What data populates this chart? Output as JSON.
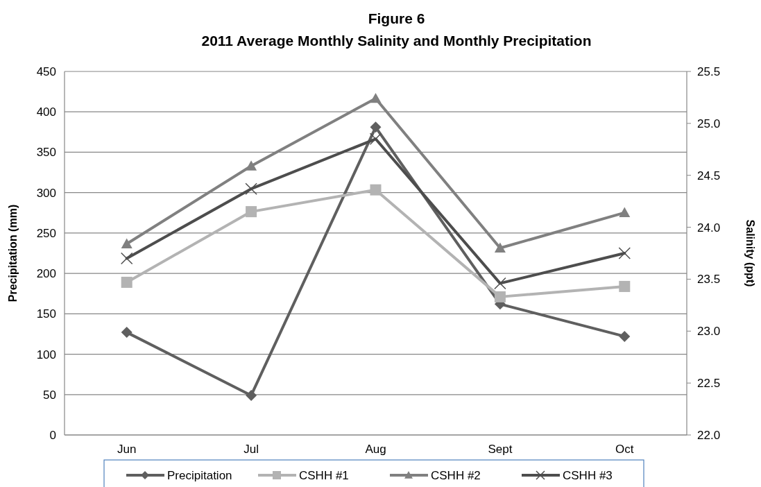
{
  "chart_data": {
    "type": "line",
    "title": "Figure 6",
    "subtitle": "2011 Average Monthly Salinity and Monthly Precipitation",
    "ylabel": "Precipitation (mm)",
    "y2label": "Salinity (ppt)",
    "categories": [
      "Jun",
      "Jul",
      "Aug",
      "Sept",
      "Oct"
    ],
    "ylim": [
      0,
      450
    ],
    "yticks": [
      0,
      50,
      100,
      150,
      200,
      250,
      300,
      350,
      400,
      450
    ],
    "y2lim": [
      22.0,
      25.5
    ],
    "y2ticks": [
      {
        "value": 22,
        "label": "22.0"
      },
      {
        "value": 22.5,
        "label": "22.5"
      },
      {
        "value": 23,
        "label": "23.0"
      },
      {
        "value": 23.5,
        "label": "23.5"
      },
      {
        "value": 24,
        "label": "24.0"
      },
      {
        "value": 24.5,
        "label": "24.5"
      },
      {
        "value": 25,
        "label": "25.0"
      },
      {
        "value": 25.5,
        "label": "25.5"
      }
    ],
    "grid": "y",
    "legend": "bottom",
    "series": [
      {
        "name": "Precipitation",
        "color": "#5f5f5f",
        "marker": "diamond",
        "values": [
          127,
          49,
          381,
          162,
          122
        ]
      },
      {
        "name": "CSHH #1",
        "color": "#b3b3b3",
        "marker": "square",
        "axis": "y2",
        "values": [
          23.47,
          24.15,
          24.36,
          23.33,
          23.43
        ]
      },
      {
        "name": "CSHH #2",
        "color": "#808080",
        "marker": "triangle",
        "axis": "y2",
        "values": [
          23.84,
          24.59,
          25.24,
          23.8,
          24.14
        ]
      },
      {
        "name": "CSHH #3",
        "color": "#4d4d4d",
        "marker": "cross",
        "axis": "y2",
        "values": [
          23.7,
          24.37,
          24.85,
          23.46,
          23.75
        ]
      }
    ]
  }
}
